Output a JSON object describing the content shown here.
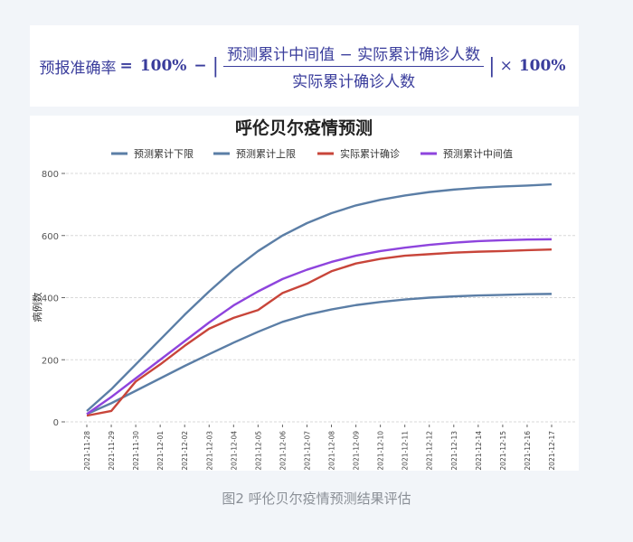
{
  "formula": {
    "lhs": "预报准确率",
    "equals": "=",
    "hundred": "100%",
    "minus": "−",
    "numerator": "预测累计中间值 − 实际累计确诊人数",
    "denominator": "实际累计确诊人数",
    "times": "×",
    "hundred2": "100%",
    "bar": "|"
  },
  "caption": "图2 呼伦贝尔疫情预测结果评估",
  "chart_data": {
    "type": "line",
    "title": "呼伦贝尔疫情预测",
    "xlabel": "",
    "ylabel": "病例数",
    "ylim": [
      0,
      800
    ],
    "yticks": [
      "0",
      "200",
      "400",
      "600",
      "800"
    ],
    "grid": true,
    "legend_position": "top",
    "x": [
      "2021-11-28",
      "2021-11-29",
      "2021-11-30",
      "2021-12-01",
      "2021-12-02",
      "2021-12-03",
      "2021-12-04",
      "2021-12-05",
      "2021-12-06",
      "2021-12-07",
      "2021-12-08",
      "2021-12-09",
      "2021-12-10",
      "2021-12-11",
      "2021-12-12",
      "2021-12-13",
      "2021-12-14",
      "2021-12-15",
      "2021-12-16",
      "2021-12-17"
    ],
    "series": [
      {
        "name": "预测累计下限",
        "color": "#5b7ea6",
        "values": [
          25,
          60,
          100,
          140,
          180,
          218,
          255,
          290,
          322,
          345,
          362,
          376,
          386,
          394,
          400,
          404,
          407,
          409,
          411,
          412
        ]
      },
      {
        "name": "预测累计上限",
        "color": "#5b7ea6",
        "values": [
          35,
          105,
          185,
          265,
          345,
          420,
          490,
          550,
          600,
          640,
          672,
          697,
          715,
          729,
          740,
          748,
          754,
          758,
          761,
          765
        ]
      },
      {
        "name": "实际累计确诊",
        "color": "#c8453a",
        "values": [
          20,
          35,
          130,
          185,
          245,
          300,
          335,
          360,
          415,
          445,
          485,
          510,
          525,
          535,
          540,
          545,
          548,
          550,
          553,
          555
        ]
      },
      {
        "name": "预测累计中间值",
        "color": "#8e44dd",
        "values": [
          25,
          80,
          140,
          200,
          260,
          320,
          375,
          420,
          460,
          490,
          515,
          535,
          550,
          561,
          570,
          577,
          582,
          585,
          587,
          588
        ]
      }
    ]
  }
}
